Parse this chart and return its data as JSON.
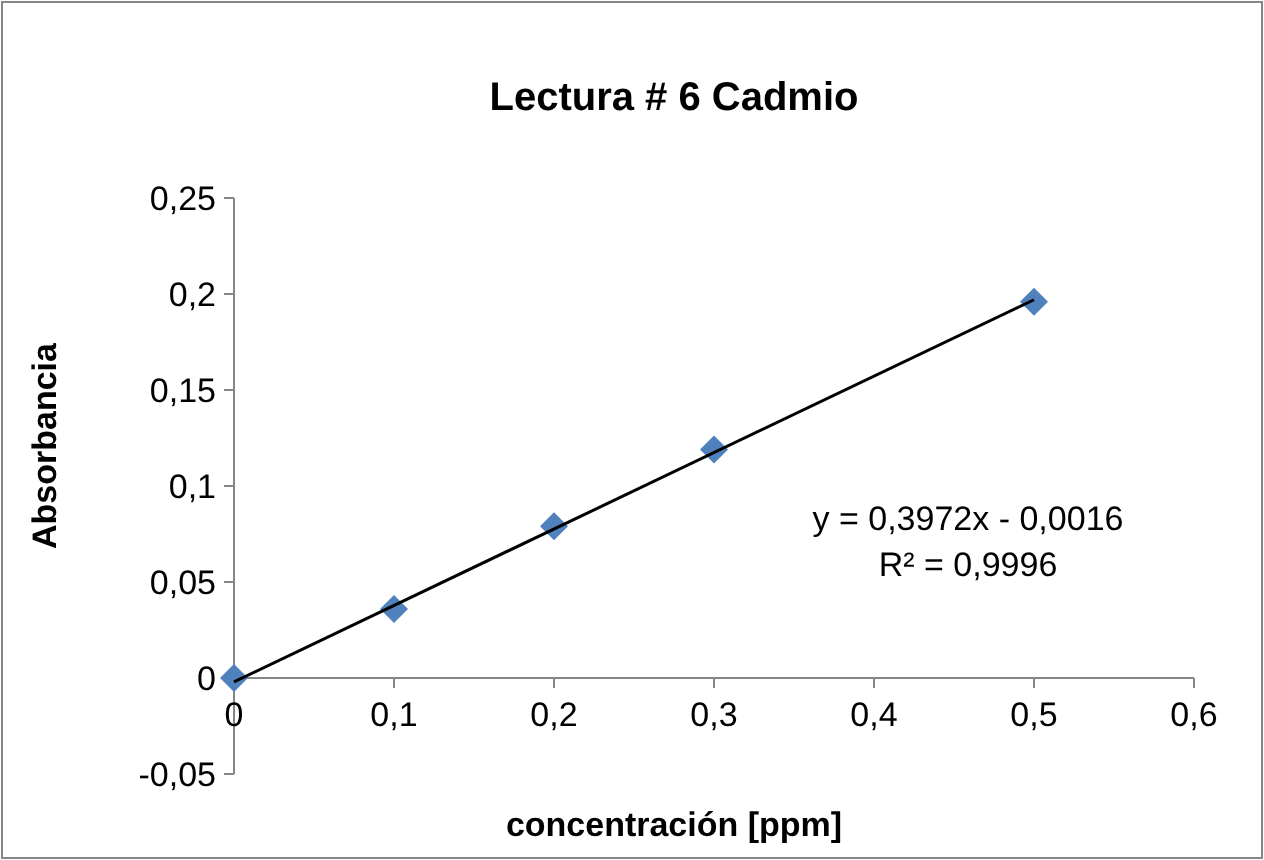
{
  "chart_data": {
    "type": "scatter",
    "title": "Lectura # 6 Cadmio",
    "xlabel": "concentración [ppm]",
    "ylabel": "Absorbancia",
    "series": [
      {
        "color": "#4f81bd",
        "x": [
          0,
          0.1,
          0.2,
          0.3,
          0.5
        ],
        "values": [
          0,
          0.036,
          0.079,
          0.119,
          0.196
        ],
        "marker": "diamond"
      },
      {
        "type": "line",
        "color": "#000000",
        "x": [
          0,
          0.5
        ],
        "values": [
          -0.002,
          0.197
        ],
        "marker": "none",
        "line_style": "solid"
      }
    ],
    "annotations": [
      "y = 0,3972x - 0,0016",
      "R² = 0,9996"
    ],
    "xlim": [
      0,
      0.6
    ],
    "ylim": [
      -0.05,
      0.25
    ],
    "xticks": [
      0,
      {
        "value": 0.1,
        "label": "0,1"
      },
      {
        "value": 0.2,
        "label": "0,2"
      },
      {
        "value": 0.3,
        "label": "0,3"
      },
      {
        "value": 0.4,
        "label": "0,4"
      },
      {
        "value": 0.5,
        "label": "0,5"
      },
      {
        "value": 0.6,
        "label": "0,6"
      }
    ],
    "yticks": [
      {
        "value": -0.05,
        "label": "-0,05"
      },
      0,
      {
        "value": 0.05,
        "label": "0,05"
      },
      {
        "value": 0.1,
        "label": "0,1"
      },
      {
        "value": 0.15,
        "label": "0,15"
      },
      {
        "value": 0.2,
        "label": "0,2"
      },
      {
        "value": 0.25,
        "label": "0,25"
      }
    ],
    "grid": false
  }
}
